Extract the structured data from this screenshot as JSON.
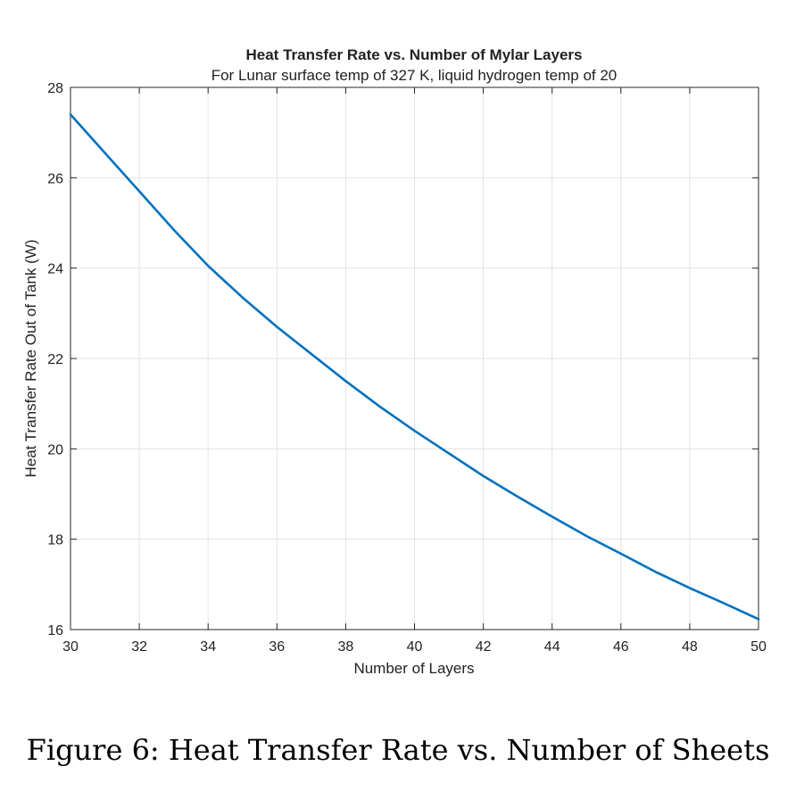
{
  "figure": {
    "caption": "Figure 6: Heat Transfer Rate vs. Number of Sheets"
  },
  "chart_data": {
    "type": "line",
    "title": "Heat Transfer Rate vs. Number of Mylar Layers",
    "subtitle": "For Lunar surface temp of 327 K, liquid hydrogen temp of 20",
    "xlabel": "Number of Layers",
    "ylabel": "Heat Transfer Rate Out of Tank (W)",
    "xlim": [
      30,
      50
    ],
    "ylim": [
      16,
      28
    ],
    "xticks": [
      30,
      32,
      34,
      36,
      38,
      40,
      42,
      44,
      46,
      48,
      50
    ],
    "yticks": [
      16,
      18,
      20,
      22,
      24,
      26,
      28
    ],
    "grid": true,
    "series": [
      {
        "color": "#0072BD",
        "x": [
          30,
          31,
          32,
          33,
          34,
          35,
          36,
          37,
          38,
          39,
          40,
          41,
          42,
          43,
          44,
          45,
          46,
          47,
          48,
          49,
          50
        ],
        "y": [
          27.4,
          26.55,
          25.7,
          24.85,
          24.05,
          23.35,
          22.7,
          22.1,
          21.5,
          20.93,
          20.4,
          19.9,
          19.4,
          18.94,
          18.5,
          18.07,
          17.68,
          17.28,
          16.92,
          16.58,
          16.23
        ]
      }
    ]
  }
}
